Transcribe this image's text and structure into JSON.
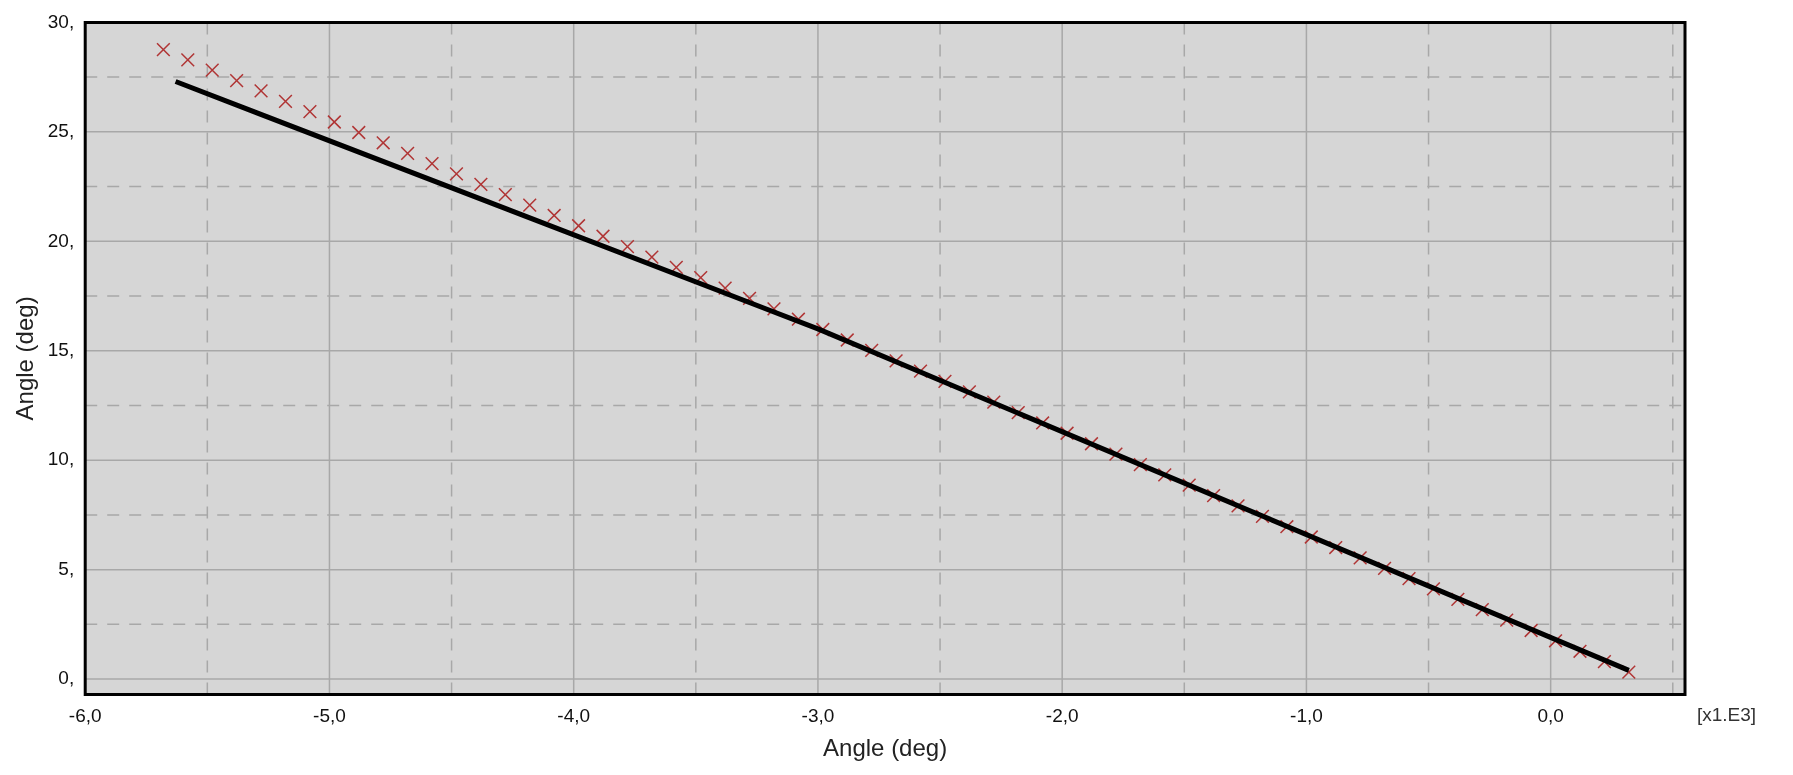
{
  "chart_data": {
    "type": "scatter",
    "xlabel": "Angle (deg)",
    "ylabel": "Angle (deg)",
    "xlim": [
      -6,
      0.55
    ],
    "ylim": [
      -0.7,
      30
    ],
    "xticks": [
      {
        "value": -6,
        "label": "-6,0"
      },
      {
        "value": -5.5,
        "label": null
      },
      {
        "value": -5,
        "label": "-5,0"
      },
      {
        "value": -4.5,
        "label": null
      },
      {
        "value": -4,
        "label": "-4,0"
      },
      {
        "value": -3.5,
        "label": null
      },
      {
        "value": -3,
        "label": "-3,0"
      },
      {
        "value": -2.5,
        "label": null
      },
      {
        "value": -2,
        "label": "-2,0"
      },
      {
        "value": -1.5,
        "label": null
      },
      {
        "value": -1,
        "label": "-1,0"
      },
      {
        "value": -0.5,
        "label": null
      },
      {
        "value": 0,
        "label": "0,0"
      },
      {
        "value": 0.5,
        "label": null
      }
    ],
    "yticks": [
      {
        "value": 0,
        "label": "0,"
      },
      {
        "value": 2.5,
        "label": null
      },
      {
        "value": 5,
        "label": "5,"
      },
      {
        "value": 7.5,
        "label": null
      },
      {
        "value": 10,
        "label": "10,"
      },
      {
        "value": 12.5,
        "label": null
      },
      {
        "value": 15,
        "label": "15,"
      },
      {
        "value": 17.5,
        "label": null
      },
      {
        "value": 20,
        "label": "20,"
      },
      {
        "value": 22.5,
        "label": null
      },
      {
        "value": 25,
        "label": "25,"
      },
      {
        "value": 27.5,
        "label": null
      },
      {
        "value": 30,
        "label": "30,"
      }
    ],
    "grid": true,
    "legend": false,
    "annotations": [
      "[x1.E3]"
    ],
    "series": [
      {
        "color": "#b03535",
        "marker": "cross",
        "x": [
          -5.68,
          -5.58,
          -5.48,
          -5.38,
          -5.28,
          -5.18,
          -5.08,
          -4.98,
          -4.88,
          -4.78,
          -4.68,
          -4.58,
          -4.48,
          -4.38,
          -4.28,
          -4.18,
          -4.08,
          -3.98,
          -3.88,
          -3.78,
          -3.68,
          -3.58,
          -3.48,
          -3.38,
          -3.28,
          -3.18,
          -3.08,
          -2.98,
          -2.88,
          -2.78,
          -2.68,
          -2.58,
          -2.48,
          -2.38,
          -2.28,
          -2.18,
          -2.08,
          -1.98,
          -1.88,
          -1.78,
          -1.68,
          -1.58,
          -1.48,
          -1.38,
          -1.28,
          -1.18,
          -1.08,
          -0.98,
          -0.88,
          -0.78,
          -0.68,
          -0.58,
          -0.48,
          -0.38,
          -0.28,
          -0.18,
          -0.08,
          0.02,
          0.12,
          0.22,
          0.32
        ],
        "values": [
          28.76,
          28.29,
          27.82,
          27.34,
          26.87,
          26.39,
          25.92,
          25.45,
          24.97,
          24.5,
          24.02,
          23.55,
          23.08,
          22.6,
          22.13,
          21.65,
          21.18,
          20.71,
          20.23,
          19.76,
          19.28,
          18.81,
          18.34,
          17.86,
          17.39,
          16.91,
          16.44,
          15.97,
          15.49,
          15.02,
          14.54,
          14.07,
          13.6,
          13.12,
          12.65,
          12.17,
          11.7,
          11.23,
          10.75,
          10.28,
          9.8,
          9.33,
          8.86,
          8.38,
          7.91,
          7.43,
          6.96,
          6.49,
          6.01,
          5.54,
          5.06,
          4.59,
          4.12,
          3.64,
          3.17,
          2.69,
          2.22,
          1.75,
          1.27,
          0.8,
          0.32
        ]
      },
      {
        "type": "line",
        "color": "#000000",
        "marker": "none",
        "line_style": "solid",
        "x": [
          -5.63,
          -3.0,
          0.32
        ],
        "values": [
          27.3,
          16.0,
          0.4
        ]
      }
    ]
  }
}
